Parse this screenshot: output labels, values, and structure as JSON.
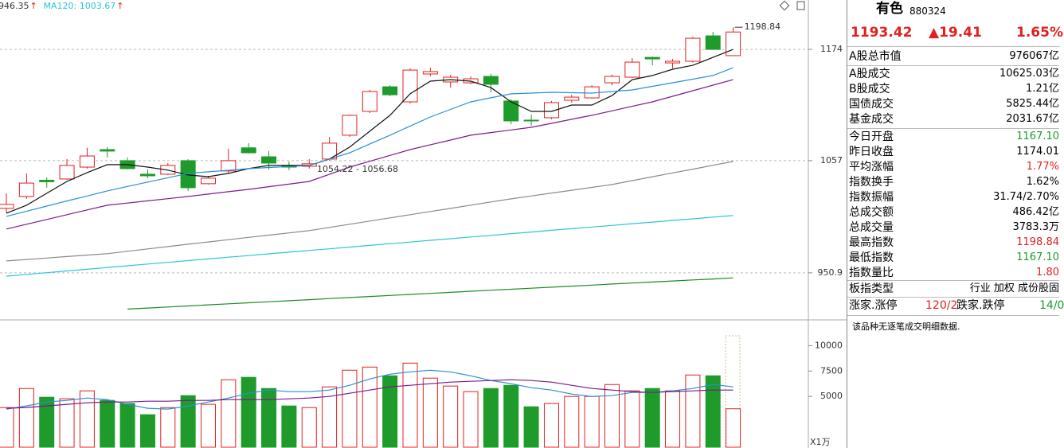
{
  "chart_data": [
    {
      "type": "candlestick",
      "log": true,
      "grid": true,
      "ylim": [
        909.6,
        1230
      ],
      "yticks": [
        950.9,
        1057,
        1174
      ],
      "up_color": "#e0201f",
      "down_color": "#1e9b2b",
      "open": [
        1010.5,
        1021.9,
        1037.7,
        1038.9,
        1050.6,
        1068.1,
        1057.0,
        1043.6,
        1043.6,
        1057.0,
        1034.3,
        1046.8,
        1069.9,
        1060.9,
        1052.3,
        1051.4,
        1058.6,
        1082.7,
        1107.3,
        1133.3,
        1117.3,
        1147.1,
        1138.5,
        1137.6,
        1144.5,
        1118.2,
        1098.2,
        1100.7,
        1119.0,
        1121.5,
        1137.6,
        1143.6,
        1165.2,
        1159.1,
        1160.9,
        1189.1,
        1167.1
      ],
      "high": [
        1025.0,
        1044.4,
        1040.5,
        1058.6,
        1069.9,
        1070.6,
        1060.2,
        1048.4,
        1054.6,
        1058.6,
        1042.0,
        1069.1,
        1074.6,
        1066.6,
        1056.2,
        1058.6,
        1081.0,
        1104.0,
        1130.0,
        1135.0,
        1153.1,
        1154.0,
        1146.3,
        1144.5,
        1147.1,
        1119.9,
        1104.0,
        1118.2,
        1124.8,
        1135.0,
        1146.3,
        1164.4,
        1166.1,
        1163.5,
        1188.1,
        1193.5,
        1198.84
      ],
      "low": [
        1005.9,
        1019.6,
        1030.4,
        1038.2,
        1049.1,
        1060.2,
        1048.4,
        1039.7,
        1042.8,
        1027.3,
        1033.5,
        1044.4,
        1064.1,
        1048.4,
        1047.6,
        1049.1,
        1057.0,
        1081.0,
        1105.6,
        1123.2,
        1115.7,
        1144.5,
        1132.4,
        1136.0,
        1127.4,
        1094.0,
        1092.4,
        1099.1,
        1116.5,
        1120.7,
        1135.0,
        1142.8,
        1156.5,
        1153.1,
        1159.5,
        1173.5,
        1167.1
      ],
      "close": [
        1014.3,
        1034.9,
        1036.2,
        1052.3,
        1061.7,
        1066.6,
        1049.1,
        1042.0,
        1052.3,
        1030.4,
        1039.7,
        1057.0,
        1064.9,
        1054.6,
        1050.6,
        1053.9,
        1074.6,
        1103.2,
        1128.3,
        1124.8,
        1151.3,
        1149.7,
        1143.6,
        1141.9,
        1136.0,
        1097.4,
        1097.4,
        1116.5,
        1122.3,
        1133.3,
        1144.5,
        1160.0,
        1163.5,
        1160.9,
        1186.4,
        1174.01,
        1193.42
      ],
      "lines": [
        {
          "color": "#111111",
          "values": [
            1005.9,
            1013.5,
            1025.0,
            1036.5,
            1045.2,
            1053.1,
            1053.1,
            1050.6,
            1047.6,
            1042.8,
            1041.2,
            1044.4,
            1049.1,
            1052.3,
            1052.3,
            1052.3,
            1058.6,
            1070.6,
            1086.8,
            1103.2,
            1125.8,
            1139.3,
            1141.0,
            1139.3,
            1132.4,
            1117.3,
            1107.3,
            1107.3,
            1114.0,
            1114.0,
            1124.0,
            1141.0,
            1145.4,
            1152.2,
            1156.5,
            1165.2,
            1174.0
          ]
        },
        {
          "color": "#2a8fd6",
          "values": [
            1002.9,
            1007.8,
            1012.7,
            1017.6,
            1022.4,
            1027.3,
            1031.6,
            1035.9,
            1040.1,
            1044.4,
            1046.0,
            1047.5,
            1049.1,
            1050.2,
            1051.2,
            1052.3,
            1058.6,
            1064.9,
            1073.8,
            1082.7,
            1092.1,
            1101.5,
            1109.4,
            1117.3,
            1121.6,
            1125.8,
            1126.6,
            1127.4,
            1127.0,
            1126.6,
            1128.3,
            1130.0,
            1133.8,
            1137.6,
            1141.5,
            1145.4,
            1153.9
          ]
        },
        {
          "color": "#7a1a8a",
          "values": [
            991.0,
            995.5,
            1000.0,
            1004.5,
            1009.0,
            1013.5,
            1015.6,
            1017.7,
            1019.8,
            1021.9,
            1024.2,
            1026.5,
            1028.8,
            1031.4,
            1033.9,
            1036.5,
            1043.5,
            1050.6,
            1056.4,
            1062.3,
            1068.1,
            1073.0,
            1077.8,
            1082.7,
            1085.4,
            1088.1,
            1090.8,
            1094.9,
            1099.1,
            1103.2,
            1107.9,
            1112.6,
            1117.3,
            1123.2,
            1129.1,
            1135.1,
            1141.0
          ]
        },
        {
          "color": "#8a8a8a",
          "values": [
            961.6,
            962.9,
            964.2,
            965.6,
            966.9,
            968.2,
            970.4,
            972.6,
            974.7,
            976.9,
            979.0,
            981.1,
            983.2,
            985.3,
            987.4,
            989.5,
            992.5,
            995.5,
            998.5,
            1001.5,
            1004.5,
            1007.5,
            1010.5,
            1013.6,
            1016.6,
            1019.6,
            1022.4,
            1025.2,
            1027.9,
            1030.7,
            1033.5,
            1037.3,
            1041.1,
            1044.9,
            1048.6,
            1052.4,
            1056.2
          ]
        },
        {
          "color": "#2cc6d6",
          "values": [
            947.9,
            949.5,
            951.0,
            952.6,
            954.1,
            955.7,
            957.2,
            958.8,
            960.3,
            961.9,
            963.4,
            965.0,
            966.5,
            968.1,
            969.6,
            971.2,
            972.7,
            974.3,
            975.8,
            977.4,
            978.9,
            980.5,
            982.0,
            983.6,
            985.1,
            986.7,
            988.2,
            989.8,
            991.3,
            992.9,
            994.4,
            996.0,
            997.5,
            999.1,
            1000.6,
            1002.2,
            1003.7
          ]
        },
        {
          "color": "#1e8a1e",
          "values": [
            null,
            null,
            null,
            null,
            null,
            null,
            918.9,
            919.8,
            920.7,
            921.6,
            922.6,
            923.5,
            924.4,
            925.3,
            926.2,
            927.1,
            928.1,
            929.0,
            929.9,
            930.8,
            931.7,
            932.6,
            933.5,
            934.5,
            935.4,
            936.3,
            937.2,
            938.1,
            939.0,
            939.9,
            940.9,
            941.8,
            942.7,
            943.6,
            944.5,
            945.4,
            946.35
          ]
        }
      ],
      "header": [
        {
          "text": "946.35",
          "arrow": "↑",
          "color": "#333333"
        },
        {
          "text": "MA120: 1003.67",
          "arrow": "↑",
          "color": "#2cc6d6"
        }
      ],
      "arrow_color": "#e0201f",
      "annotations": [
        "1198.84",
        "1054.22 - 1056.68"
      ]
    },
    {
      "type": "bar",
      "ylim": [
        0,
        12300
      ],
      "yticks": [
        5000,
        7500,
        10000
      ],
      "unit": "X1万",
      "values": [
        3900,
        5780,
        4920,
        4770,
        5550,
        4610,
        4300,
        3200,
        3900,
        5080,
        4220,
        6640,
        6880,
        5780,
        4060,
        3900,
        5940,
        7580,
        7890,
        7030,
        8280,
        6800,
        6020,
        5470,
        5780,
        6090,
        3980,
        4300,
        5000,
        5000,
        6170,
        5550,
        5780,
        5550,
        7110,
        7030,
        3783.3
      ],
      "lines": [
        {
          "color": "#2a8fd6",
          "values": [
            3750,
            4063,
            4453,
            4609,
            4844,
            4688,
            4219,
            3828,
            3750,
            4063,
            4453,
            4844,
            5313,
            5625,
            5469,
            5469,
            5625,
            6094,
            6719,
            7188,
            7422,
            7578,
            7422,
            7031,
            6563,
            6250,
            5859,
            5625,
            5234,
            5000,
            5078,
            5391,
            5391,
            5547,
            5781,
            6172,
            5938
          ]
        },
        {
          "color": "#7a1a8a",
          "values": [
            3828,
            3906,
            4063,
            4219,
            4375,
            4453,
            4453,
            4531,
            4531,
            4609,
            4609,
            4688,
            4688,
            4688,
            4766,
            4844,
            5000,
            5313,
            5625,
            5938,
            6094,
            6250,
            6406,
            6484,
            6563,
            6641,
            6563,
            6406,
            6094,
            5781,
            5625,
            5469,
            5391,
            5469,
            5547,
            5625,
            5625
          ]
        }
      ]
    }
  ],
  "panel": {
    "name": "有色",
    "code": "880324",
    "price": "1193.42",
    "change": "▲19.41",
    "pct": "1.65%",
    "quote_color": "#e0201f",
    "rows": [
      {
        "label": "A股总市值",
        "value": "976067亿"
      },
      {
        "label": "A股成交",
        "value": "10625.03亿"
      },
      {
        "label": "B股成交",
        "value": "1.21亿"
      },
      {
        "label": "国债成交",
        "value": "5825.44亿"
      },
      {
        "label": "基金成交",
        "value": "2031.67亿"
      },
      {
        "label": "今日开盘",
        "value": "1167.10",
        "color": "#1e9b2b"
      },
      {
        "label": "昨日收盘",
        "value": "1174.01"
      },
      {
        "label": "平均涨幅",
        "value": "1.77%",
        "color": "#e0201f"
      },
      {
        "label": "指数换手",
        "value": "1.62%"
      },
      {
        "label": "指数振幅",
        "value": "31.74/2.70%"
      },
      {
        "label": "总成交额",
        "value": "486.42亿"
      },
      {
        "label": "总成交量",
        "value": "3783.3万"
      },
      {
        "label": "最高指数",
        "value": "1198.84",
        "color": "#e0201f"
      },
      {
        "label": "最低指数",
        "value": "1167.10",
        "color": "#1e9b2b"
      },
      {
        "label": "指数量比",
        "value": "1.80",
        "color": "#e0201f"
      },
      {
        "label": "板指类型",
        "value": "行业 加权 成份股固"
      }
    ],
    "breadth": {
      "label1": "涨家.涨停",
      "value1": "120/2",
      "label2": "跌家.跌停",
      "value2": "14/0",
      "color1": "#e0201f",
      "color2": "#1e9b2b"
    },
    "note": "该品种无逐笔成交明细数据."
  }
}
